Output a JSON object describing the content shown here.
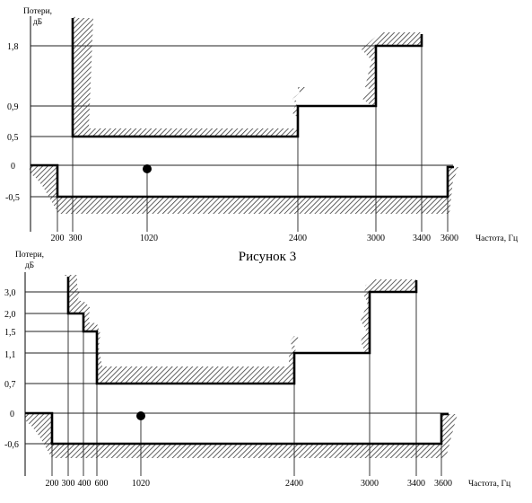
{
  "caption": "Рисунок 3",
  "colors": {
    "line": "#000000",
    "thin": "#222222",
    "hatch": "#3a3a3a",
    "background": "#ffffff"
  },
  "icons": {
    "marker": "filled-circle-marker",
    "hatch": "diagonal-hatch-pattern"
  },
  "diagrams": [
    {
      "y_axis_label": [
        "Потери,",
        "дБ"
      ],
      "x_axis_label": "Частота, Гц",
      "y_ticks": [
        "1,8",
        "0,9",
        "0,5",
        "0",
        "-0,5"
      ],
      "x_ticks": [
        "200",
        "300",
        "1020",
        "2400",
        "3000",
        "3400",
        "3600"
      ],
      "upper_mask": [
        {
          "from_hz": 300,
          "to_hz": 2400,
          "loss_db": 0.5
        },
        {
          "from_hz": 2400,
          "to_hz": 3000,
          "loss_db": 0.9
        },
        {
          "from_hz": 3000,
          "to_hz": 3400,
          "loss_db": 1.8
        }
      ],
      "lower_mask": {
        "from_hz": 200,
        "to_hz": 3600,
        "loss_db": -0.5
      },
      "reference_point": {
        "frequency_hz": 1020,
        "loss_db": 0
      }
    },
    {
      "y_axis_label": [
        "Потери,",
        "дБ"
      ],
      "x_axis_label": "Частота,  Гц",
      "y_ticks": [
        "3,0",
        "2,0",
        "1,5",
        "1,1",
        "0,7",
        "0",
        "-0,6"
      ],
      "x_ticks": [
        "200",
        "300",
        "400",
        "600",
        "1020",
        "2400",
        "3000",
        "3400",
        "3600"
      ],
      "upper_mask": [
        {
          "from_hz": 300,
          "to_hz": 400,
          "loss_db": 2.0
        },
        {
          "from_hz": 400,
          "to_hz": 600,
          "loss_db": 1.5
        },
        {
          "from_hz": 600,
          "to_hz": 2400,
          "loss_db": 0.7
        },
        {
          "from_hz": 2400,
          "to_hz": 3000,
          "loss_db": 1.1
        },
        {
          "from_hz": 3000,
          "to_hz": 3400,
          "loss_db": 3.0
        }
      ],
      "lower_mask": {
        "from_hz": 200,
        "to_hz": 3600,
        "loss_db": -0.6
      },
      "reference_point": {
        "frequency_hz": 1020,
        "loss_db": 0
      }
    }
  ]
}
